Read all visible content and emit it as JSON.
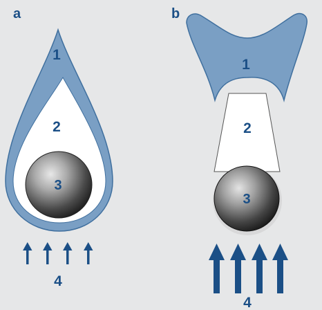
{
  "panels": {
    "a": {
      "letter": "a",
      "region_1": "1",
      "region_2": "2",
      "region_3": "3",
      "region_4": "4"
    },
    "b": {
      "letter": "b",
      "region_1": "1",
      "region_2": "2",
      "region_3": "3",
      "region_4": "4"
    }
  },
  "colors": {
    "background": "#e6e7e8",
    "shell": "#7a9fc4",
    "shell_stroke": "#3f6f9e",
    "label": "#1b4f86",
    "arrow": "#1b4f86"
  }
}
